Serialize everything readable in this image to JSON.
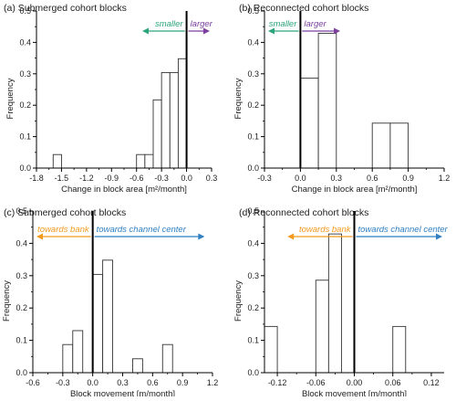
{
  "chart_data": [
    {
      "type": "bar",
      "title": "(a) Submerged cohort blocks",
      "xlabel": "Change in block area [m²/month]",
      "ylabel": "Frequency",
      "xlim": [
        -1.8,
        0.3
      ],
      "ylim": [
        0,
        0.5
      ],
      "xticks": [
        "-1.8",
        "-1.5",
        "-1.2",
        "-0.9",
        "-0.6",
        "-0.3",
        "0.0",
        "0.3"
      ],
      "yticks": [
        "0.0",
        "0.1",
        "0.2",
        "0.3",
        "0.4",
        "0.5"
      ],
      "bin_width": 0.1,
      "bins": [
        {
          "x": -1.6,
          "value": 0.043
        },
        {
          "x": -0.6,
          "value": 0.043
        },
        {
          "x": -0.5,
          "value": 0.043
        },
        {
          "x": -0.4,
          "value": 0.217
        },
        {
          "x": -0.3,
          "value": 0.304
        },
        {
          "x": -0.2,
          "value": 0.304
        },
        {
          "x": -0.1,
          "value": 0.348
        }
      ],
      "zero_line_x": 0.0,
      "annotations": [
        {
          "text": "smaller",
          "direction": "left",
          "color": "#2ca57a"
        },
        {
          "text": "larger",
          "direction": "right",
          "color": "#7b3f9e"
        }
      ]
    },
    {
      "type": "bar",
      "title": "(b) Reconnected cohort blocks",
      "xlabel": "Change in block area [m²/month]",
      "ylabel": "Frequency",
      "xlim": [
        -0.3,
        1.2
      ],
      "ylim": [
        0,
        0.5
      ],
      "xticks": [
        "-0.3",
        "0.0",
        "0.3",
        "0.6",
        "0.9",
        "1.2"
      ],
      "yticks": [
        "0.0",
        "0.1",
        "0.2",
        "0.3",
        "0.4",
        "0.5"
      ],
      "bin_width": 0.15,
      "bins": [
        {
          "x": 0.0,
          "value": 0.286
        },
        {
          "x": 0.15,
          "value": 0.429
        },
        {
          "x": 0.6,
          "value": 0.143
        },
        {
          "x": 0.75,
          "value": 0.143
        }
      ],
      "zero_line_x": 0.0,
      "annotations": [
        {
          "text": "smaller",
          "direction": "left",
          "color": "#2ca57a"
        },
        {
          "text": "larger",
          "direction": "right",
          "color": "#7b3f9e"
        }
      ]
    },
    {
      "type": "bar",
      "title": "(c) Submerged cohort blocks",
      "xlabel": "Block movement [m/month]",
      "ylabel": "Frequency",
      "xlim": [
        -0.6,
        1.2
      ],
      "ylim": [
        0,
        0.5
      ],
      "xticks": [
        "-0.6",
        "-0.3",
        "0.0",
        "0.3",
        "0.6",
        "0.9",
        "1.2"
      ],
      "yticks": [
        "0.0",
        "0.1",
        "0.2",
        "0.3",
        "0.4",
        "0.5"
      ],
      "bin_width": 0.1,
      "bins": [
        {
          "x": -0.3,
          "value": 0.087
        },
        {
          "x": -0.2,
          "value": 0.13
        },
        {
          "x": 0.0,
          "value": 0.304
        },
        {
          "x": 0.1,
          "value": 0.348
        },
        {
          "x": 0.4,
          "value": 0.043
        },
        {
          "x": 0.7,
          "value": 0.087
        }
      ],
      "zero_line_x": 0.0,
      "annotations": [
        {
          "text": "towards bank",
          "direction": "left",
          "color": "#f39a1e"
        },
        {
          "text": "towards channel center",
          "direction": "right",
          "color": "#2f7fc1"
        }
      ]
    },
    {
      "type": "bar",
      "title": "(d) Reconnected cohort blocks",
      "xlabel": "Block movement [m/month]",
      "ylabel": "Frequency",
      "xlim": [
        -0.14,
        0.14
      ],
      "ylim": [
        0,
        0.5
      ],
      "xticks": [
        "-0.12",
        "-0.06",
        "0.00",
        "0.06",
        "0.12"
      ],
      "yticks": [
        "0.0",
        "0.1",
        "0.2",
        "0.3",
        "0.4",
        "0.5"
      ],
      "bin_width": 0.02,
      "bins": [
        {
          "x": -0.14,
          "value": 0.143
        },
        {
          "x": -0.06,
          "value": 0.286
        },
        {
          "x": -0.04,
          "value": 0.429
        },
        {
          "x": 0.06,
          "value": 0.143
        }
      ],
      "zero_line_x": 0.0,
      "annotations": [
        {
          "text": "towards bank",
          "direction": "left",
          "color": "#f39a1e"
        },
        {
          "text": "towards channel center",
          "direction": "right",
          "color": "#2f7fc1"
        }
      ]
    }
  ]
}
